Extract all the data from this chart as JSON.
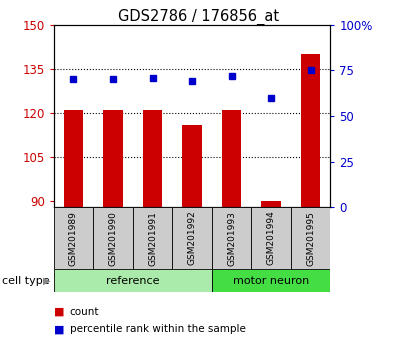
{
  "title": "GDS2786 / 176856_at",
  "categories": [
    "GSM201989",
    "GSM201990",
    "GSM201991",
    "GSM201992",
    "GSM201993",
    "GSM201994",
    "GSM201995"
  ],
  "bar_values": [
    121,
    121,
    121,
    116,
    121,
    90,
    140
  ],
  "dot_values": [
    70,
    70,
    71,
    69,
    72,
    60,
    75
  ],
  "bar_color": "#cc0000",
  "dot_color": "#0000cc",
  "ylim_left": [
    88,
    150
  ],
  "ylim_right": [
    0,
    100
  ],
  "yticks_left": [
    90,
    105,
    120,
    135,
    150
  ],
  "yticks_right": [
    0,
    25,
    50,
    75,
    100
  ],
  "ytick_labels_right": [
    "0",
    "25",
    "50",
    "75",
    "100%"
  ],
  "grid_values": [
    105,
    120,
    135
  ],
  "cell_types": [
    {
      "label": "reference",
      "span": [
        0,
        4
      ],
      "color": "#aaeaaa"
    },
    {
      "label": "motor neuron",
      "span": [
        4,
        7
      ],
      "color": "#44dd44"
    }
  ],
  "cell_type_label": "cell type",
  "legend_items": [
    {
      "label": "count",
      "color": "#cc0000"
    },
    {
      "label": "percentile rank within the sample",
      "color": "#0000cc"
    }
  ],
  "bar_width": 0.5,
  "cat_box_color": "#cccccc"
}
